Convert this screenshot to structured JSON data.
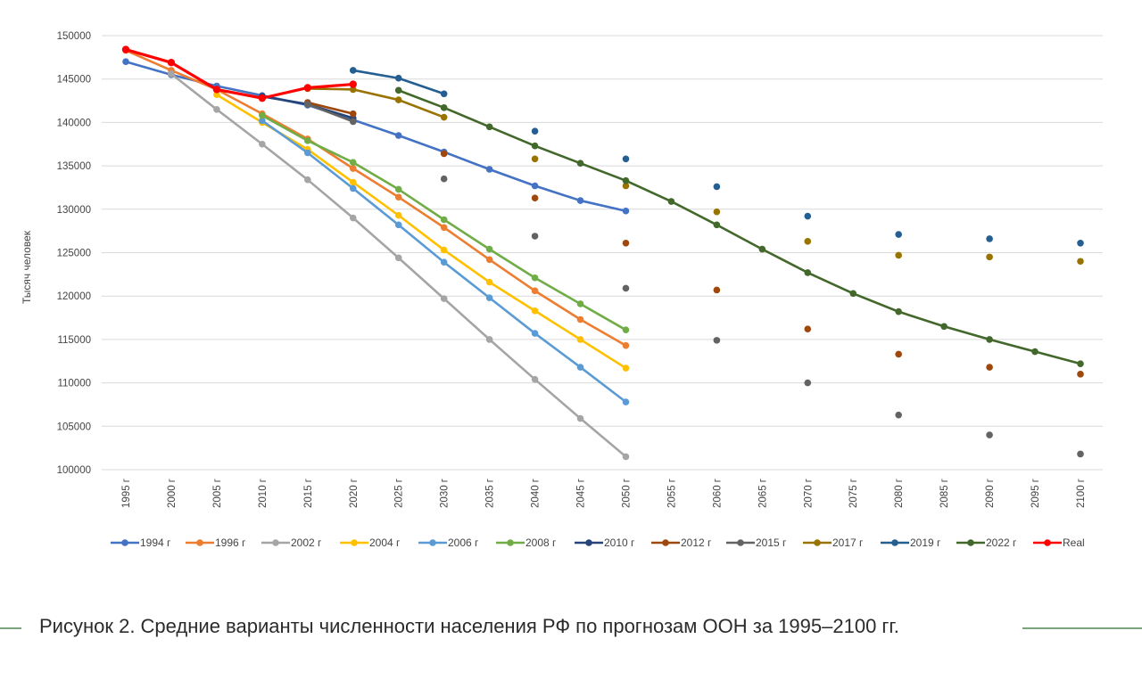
{
  "caption": "Рисунок 2. Средние варианты численности населения РФ по прогнозам ООН за 1995–2100 гг.",
  "chart_data": {
    "type": "line",
    "title": "",
    "xlabel": "",
    "ylabel": "Тысяч человек",
    "ylim": [
      100000,
      150000
    ],
    "ytick_step": 5000,
    "grid": true,
    "legend_placement": "bottom",
    "categories": [
      "1995 г",
      "2000 г",
      "2005 г",
      "2010 г",
      "2015 г",
      "2020 г",
      "2025 г",
      "2030 г",
      "2035 г",
      "2040 г",
      "2045 г",
      "2050 г",
      "2055 г",
      "2060 г",
      "2065 г",
      "2070 г",
      "2075 г",
      "2080 г",
      "2085 г",
      "2090 г",
      "2095 г",
      "2100 г"
    ],
    "series": [
      {
        "name": "1994 г",
        "color": "#4472c4",
        "line": true,
        "values": [
          147000,
          145500,
          144200,
          143100,
          142000,
          140300,
          138500,
          136600,
          134600,
          132700,
          131000,
          129800,
          null,
          null,
          null,
          null,
          null,
          null,
          null,
          null,
          null,
          null
        ]
      },
      {
        "name": "1996 г",
        "color": "#ed7d31",
        "line": true,
        "values": [
          148300,
          146000,
          143800,
          141000,
          138100,
          134700,
          131400,
          127900,
          124200,
          120600,
          117300,
          114300,
          null,
          null,
          null,
          null,
          null,
          null,
          null,
          null,
          null,
          null
        ]
      },
      {
        "name": "2002 г",
        "color": "#a5a5a5",
        "line": true,
        "values": [
          null,
          145600,
          141500,
          137500,
          133400,
          129000,
          124400,
          119700,
          115000,
          110400,
          105900,
          101500,
          null,
          null,
          null,
          null,
          null,
          null,
          null,
          null,
          null,
          null
        ]
      },
      {
        "name": "2004 г",
        "color": "#ffc000",
        "line": true,
        "values": [
          null,
          null,
          143200,
          140000,
          136900,
          133100,
          129300,
          125300,
          121600,
          118300,
          115000,
          111700,
          null,
          null,
          null,
          null,
          null,
          null,
          null,
          null,
          null,
          null
        ]
      },
      {
        "name": "2006 г",
        "color": "#5b9bd5",
        "line": true,
        "values": [
          null,
          null,
          null,
          140200,
          136500,
          132400,
          128200,
          123900,
          119800,
          115700,
          111800,
          107800,
          null,
          null,
          null,
          null,
          null,
          null,
          null,
          null,
          null,
          null
        ]
      },
      {
        "name": "2008 г",
        "color": "#70ad47",
        "line": true,
        "values": [
          null,
          null,
          null,
          140800,
          137900,
          135400,
          132300,
          128800,
          125400,
          122100,
          119100,
          116100,
          null,
          null,
          null,
          null,
          null,
          null,
          null,
          null,
          null,
          null
        ]
      },
      {
        "name": "2010 г",
        "color": "#264478",
        "line": true,
        "values": [
          null,
          null,
          null,
          143000,
          142100,
          140500,
          null,
          null,
          null,
          null,
          null,
          null,
          null,
          null,
          null,
          null,
          null,
          null,
          null,
          null,
          null,
          null
        ]
      },
      {
        "name": "2012 г",
        "color": "#9e480e",
        "line": true,
        "values": [
          null,
          null,
          null,
          null,
          142300,
          141000,
          null,
          136400,
          null,
          131300,
          null,
          126100,
          null,
          120700,
          null,
          116200,
          null,
          113300,
          null,
          111800,
          null,
          111000
        ]
      },
      {
        "name": "2015 г",
        "color": "#636363",
        "line": true,
        "values": [
          null,
          null,
          null,
          null,
          142100,
          140100,
          null,
          133500,
          null,
          126900,
          null,
          120900,
          null,
          114900,
          null,
          110000,
          null,
          106300,
          null,
          104000,
          null,
          101800
        ]
      },
      {
        "name": "2017 г",
        "color": "#997300",
        "line": true,
        "values": [
          null,
          null,
          null,
          null,
          143900,
          143800,
          142600,
          140600,
          null,
          135800,
          null,
          132700,
          null,
          129700,
          null,
          126300,
          null,
          124700,
          null,
          124500,
          null,
          124000
        ]
      },
      {
        "name": "2019 г",
        "color": "#255e91",
        "line": true,
        "values": [
          null,
          null,
          null,
          null,
          null,
          146000,
          145100,
          143300,
          null,
          139000,
          null,
          135800,
          null,
          132600,
          null,
          129200,
          null,
          127100,
          null,
          126600,
          null,
          126100
        ]
      },
      {
        "name": "2022 г",
        "color": "#43682b",
        "line": true,
        "values": [
          null,
          null,
          null,
          null,
          null,
          null,
          143700,
          141700,
          139500,
          137300,
          135300,
          133300,
          130900,
          128200,
          125400,
          122700,
          120300,
          118200,
          116500,
          115000,
          113600,
          112200
        ]
      },
      {
        "name": "Real",
        "color": "#ff0000",
        "line": true,
        "thick": true,
        "values": [
          148400,
          146900,
          143800,
          142800,
          144000,
          144400,
          null,
          null,
          null,
          null,
          null,
          null,
          null,
          null,
          null,
          null,
          null,
          null,
          null,
          null,
          null,
          null
        ]
      }
    ]
  }
}
